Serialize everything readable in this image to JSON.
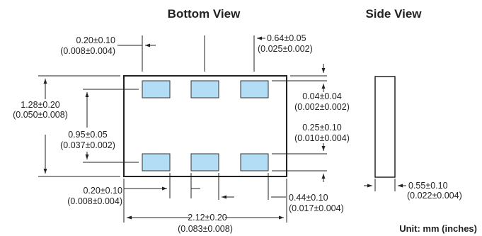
{
  "headings": {
    "bottom_view": "Bottom View",
    "side_view": "Side View"
  },
  "unit_note": "Unit: mm (inches)",
  "colors": {
    "pad": "#b3ddf5",
    "line": "#222222"
  },
  "dimensions": {
    "pad_edge_offset_top": {
      "mm": "0.20±0.10",
      "in": "(0.008±0.004)"
    },
    "pad_width": {
      "mm": "0.64±0.05",
      "in": "(0.025±0.002)"
    },
    "body_height": {
      "mm": "1.28±0.20",
      "in": "(0.050±0.008)"
    },
    "pad_top_gap": {
      "mm": "0.04±0.04",
      "in": "(0.002±0.002)"
    },
    "pad_row_pitch": {
      "mm": "0.95±0.05",
      "in": "(0.037±0.002)"
    },
    "pad_height": {
      "mm": "0.25±0.10",
      "in": "(0.010±0.004)"
    },
    "pad_edge_offset_bottom": {
      "mm": "0.20±0.10",
      "in": "(0.008±0.004)"
    },
    "pad_spacing": {
      "mm": "0.44±0.10",
      "in": "(0.017±0.004)"
    },
    "body_length": {
      "mm": "2.12±0.20",
      "in": "(0.083±0.008)"
    },
    "thickness": {
      "mm": "0.55±0.10",
      "in": "(0.022±0.004)"
    }
  }
}
